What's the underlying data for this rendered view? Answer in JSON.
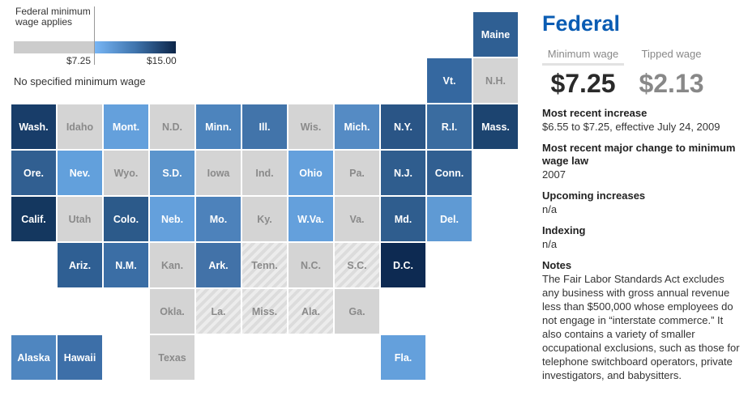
{
  "legend": {
    "federal_label": "Federal minimum wage applies",
    "low": "$7.25",
    "high": "$15.00",
    "none_label": "No specified minimum wage",
    "gradient_colors": [
      "#78b6f5",
      "#0c2548"
    ],
    "gray": "#cccccc"
  },
  "states": [
    {
      "abbr": "Maine",
      "col": 10,
      "row": 0,
      "color": "#2f5f93"
    },
    {
      "abbr": "Vt.",
      "col": 9,
      "row": 1,
      "color": "#3568a0"
    },
    {
      "abbr": "N.H.",
      "col": 10,
      "row": 1,
      "style": "gray"
    },
    {
      "abbr": "Wash.",
      "col": 0,
      "row": 2,
      "color": "#183d69"
    },
    {
      "abbr": "Idaho",
      "col": 1,
      "row": 2,
      "style": "gray"
    },
    {
      "abbr": "Mont.",
      "col": 2,
      "row": 2,
      "color": "#64a0dc"
    },
    {
      "abbr": "N.D.",
      "col": 3,
      "row": 2,
      "style": "gray"
    },
    {
      "abbr": "Minn.",
      "col": 4,
      "row": 2,
      "color": "#4d84bd"
    },
    {
      "abbr": "Ill.",
      "col": 5,
      "row": 2,
      "color": "#4274aa"
    },
    {
      "abbr": "Wis.",
      "col": 6,
      "row": 2,
      "style": "gray"
    },
    {
      "abbr": "Mich.",
      "col": 7,
      "row": 2,
      "color": "#558bc4"
    },
    {
      "abbr": "N.Y.",
      "col": 8,
      "row": 2,
      "color": "#2a5586"
    },
    {
      "abbr": "R.I.",
      "col": 9,
      "row": 2,
      "color": "#3a6ca0"
    },
    {
      "abbr": "Mass.",
      "col": 10,
      "row": 2,
      "color": "#1c4470"
    },
    {
      "abbr": "Ore.",
      "col": 0,
      "row": 3,
      "color": "#315f91"
    },
    {
      "abbr": "Nev.",
      "col": 1,
      "row": 3,
      "color": "#62a0dc"
    },
    {
      "abbr": "Wyo.",
      "col": 2,
      "row": 3,
      "style": "gray"
    },
    {
      "abbr": "S.D.",
      "col": 3,
      "row": 3,
      "color": "#5b94cc"
    },
    {
      "abbr": "Iowa",
      "col": 4,
      "row": 3,
      "style": "gray"
    },
    {
      "abbr": "Ind.",
      "col": 5,
      "row": 3,
      "style": "gray"
    },
    {
      "abbr": "Ohio",
      "col": 6,
      "row": 3,
      "color": "#64a0dc"
    },
    {
      "abbr": "Pa.",
      "col": 7,
      "row": 3,
      "style": "gray"
    },
    {
      "abbr": "N.J.",
      "col": 8,
      "row": 3,
      "color": "#2f5d8e"
    },
    {
      "abbr": "Conn.",
      "col": 9,
      "row": 3,
      "color": "#315f91"
    },
    {
      "abbr": "Calif.",
      "col": 0,
      "row": 4,
      "color": "#14375f"
    },
    {
      "abbr": "Utah",
      "col": 1,
      "row": 4,
      "style": "gray"
    },
    {
      "abbr": "Colo.",
      "col": 2,
      "row": 4,
      "color": "#2c5a8a"
    },
    {
      "abbr": "Neb.",
      "col": 3,
      "row": 4,
      "color": "#64a0dc"
    },
    {
      "abbr": "Mo.",
      "col": 4,
      "row": 4,
      "color": "#4d82bb"
    },
    {
      "abbr": "Ky.",
      "col": 5,
      "row": 4,
      "style": "gray"
    },
    {
      "abbr": "W.Va.",
      "col": 6,
      "row": 4,
      "color": "#64a0dc"
    },
    {
      "abbr": "Va.",
      "col": 7,
      "row": 4,
      "style": "gray"
    },
    {
      "abbr": "Md.",
      "col": 8,
      "row": 4,
      "color": "#2f5d8e"
    },
    {
      "abbr": "Del.",
      "col": 9,
      "row": 4,
      "color": "#5f9ad4"
    },
    {
      "abbr": "Ariz.",
      "col": 1,
      "row": 5,
      "color": "#2f5f93"
    },
    {
      "abbr": "N.M.",
      "col": 2,
      "row": 5,
      "color": "#3b6ea5"
    },
    {
      "abbr": "Kan.",
      "col": 3,
      "row": 5,
      "style": "gray"
    },
    {
      "abbr": "Ark.",
      "col": 4,
      "row": 5,
      "color": "#4272a8"
    },
    {
      "abbr": "Tenn.",
      "col": 5,
      "row": 5,
      "style": "hatch"
    },
    {
      "abbr": "N.C.",
      "col": 6,
      "row": 5,
      "style": "gray"
    },
    {
      "abbr": "S.C.",
      "col": 7,
      "row": 5,
      "style": "hatch"
    },
    {
      "abbr": "D.C.",
      "col": 8,
      "row": 5,
      "color": "#0d2a52"
    },
    {
      "abbr": "Okla.",
      "col": 3,
      "row": 6,
      "style": "gray"
    },
    {
      "abbr": "La.",
      "col": 4,
      "row": 6,
      "style": "hatch"
    },
    {
      "abbr": "Miss.",
      "col": 5,
      "row": 6,
      "style": "hatch"
    },
    {
      "abbr": "Ala.",
      "col": 6,
      "row": 6,
      "style": "hatch"
    },
    {
      "abbr": "Ga.",
      "col": 7,
      "row": 6,
      "style": "gray"
    },
    {
      "abbr": "Alaska",
      "col": 0,
      "row": 7,
      "color": "#4f86c0"
    },
    {
      "abbr": "Hawaii",
      "col": 1,
      "row": 7,
      "color": "#3d6fa8"
    },
    {
      "abbr": "Texas",
      "col": 3,
      "row": 7,
      "style": "gray"
    },
    {
      "abbr": "Fla.",
      "col": 8,
      "row": 7,
      "color": "#64a0dc"
    }
  ],
  "panel": {
    "title": "Federal",
    "tabs": [
      "Minimum wage",
      "Tipped wage"
    ],
    "minimum_wage": "$7.25",
    "tipped_wage": "$2.13",
    "sections": [
      {
        "heading": "Most recent increase",
        "body": "$6.55 to $7.25, effective July 24, 2009"
      },
      {
        "heading": "Most recent major change to minimum wage law",
        "body": "2007"
      },
      {
        "heading": "Upcoming increases",
        "body": "n/a"
      },
      {
        "heading": "Indexing",
        "body": "n/a"
      },
      {
        "heading": "Notes",
        "body": "The Fair Labor Standards Act excludes any business with gross annual revenue less than $500,000 whose employees do not engage in “interstate commerce.” It also contains a variety of smaller occupational exclusions, such as those for telephone switchboard operators, private investigators, and babysitters."
      }
    ]
  }
}
